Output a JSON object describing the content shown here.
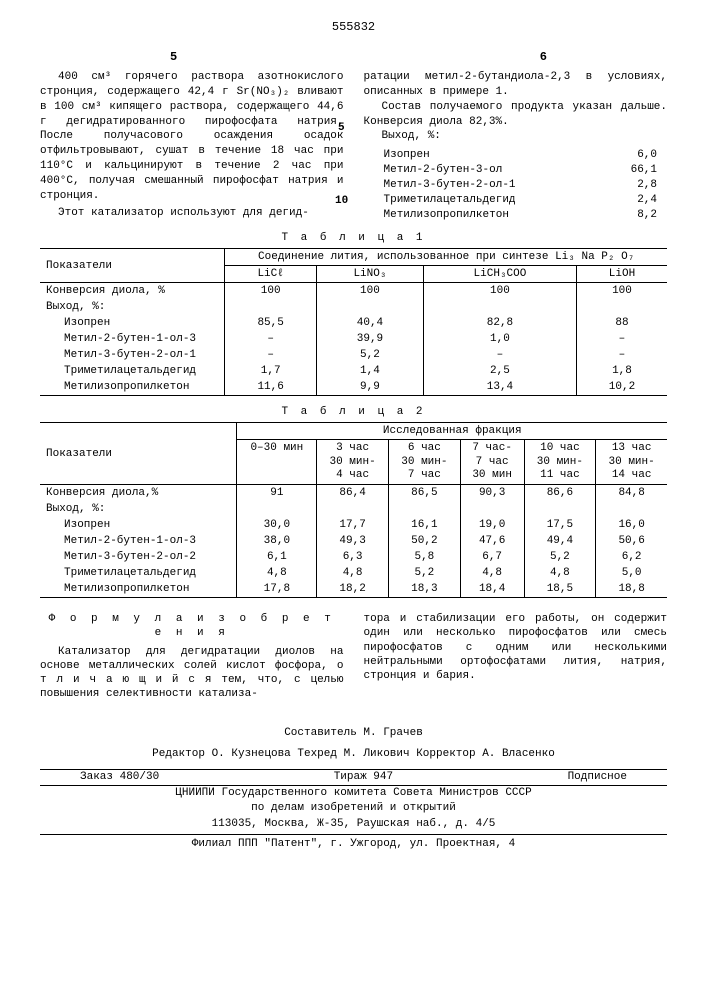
{
  "document_number": "555832",
  "page_left_num": "5",
  "page_right_num": "6",
  "margin_nums": {
    "n5": "5",
    "n10": "10"
  },
  "left_col_text": "400 см³ горячего раствора азотнокислого стронция, содержащего 42,4 г Sr(NO₃)₂ вливают в 100 см³ кипящего раствора, содержащего 44,6 г дегидратированного пирофосфата натрия. После получасового осаждения осадок отфильтровывают, сушат в течение 18 час при 110°С и кальцинируют в течение 2 час при 400°С, получая смешанный пирофосфат натрия и стронция.",
  "left_col_text2": "Этот катализатор используют для дегид-",
  "right_col_text1": "ратации метил-2-бутандиола-2,3 в условиях, описанных в примере 1.",
  "right_col_text2": "Состав получаемого продукта указан дальше. Конверсия диола 82,3%.",
  "right_col_text3": "Выход, %:",
  "composition": [
    {
      "label": "Изопрен",
      "value": "6,0"
    },
    {
      "label": "Метил-2-бутен-3-ол",
      "value": "66,1"
    },
    {
      "label": "Метил-3-бутен-2-ол-1",
      "value": "2,8"
    },
    {
      "label": "Триметилацетальдегид",
      "value": "2,4"
    },
    {
      "label": "Метилизопропилкетон",
      "value": "8,2"
    }
  ],
  "table1": {
    "caption": "Т а б л и ц а  1",
    "header_main": "Соединение лития, использованное при синтезе Li₃ Na P₂ O₇",
    "row_label_header": "Показатели",
    "col_headers": [
      "LiCℓ",
      "LiNO₃",
      "LiCH₃COO",
      "LiOH"
    ],
    "rows": [
      {
        "label": "Конверсия диола, %",
        "values": [
          "100",
          "100",
          "100",
          "100"
        ]
      },
      {
        "label": "Выход, %:",
        "values": [
          "",
          "",
          "",
          ""
        ]
      },
      {
        "label": "Изопрен",
        "values": [
          "85,5",
          "40,4",
          "82,8",
          "88"
        ],
        "indent": true
      },
      {
        "label": "Метил-2-бутен-1-ол-3",
        "values": [
          "–",
          "39,9",
          "1,0",
          "–"
        ],
        "indent": true
      },
      {
        "label": "Метил-3-бутен-2-ол-1",
        "values": [
          "–",
          "5,2",
          "–",
          "–"
        ],
        "indent": true
      },
      {
        "label": "Триметилацетальдегид",
        "values": [
          "1,7",
          "1,4",
          "2,5",
          "1,8"
        ],
        "indent": true
      },
      {
        "label": "Метилизопропилкетон",
        "values": [
          "11,6",
          "9,9",
          "13,4",
          "10,2"
        ],
        "indent": true
      }
    ]
  },
  "table2": {
    "caption": "Т а б л и ц а  2",
    "row_label_header": "Показатели",
    "header_main": "Исследованная фракция",
    "col_headers_top": [
      "0–30 мин",
      "3 час 30 мин- 4 час",
      "6 час 30 мин- 7 час",
      "7 час- 7 час 30 мин",
      "10 час 30 мин- 11 час",
      "13 час 30 мин- 14 час"
    ],
    "rows": [
      {
        "label": "Конверсия диола,%",
        "values": [
          "91",
          "86,4",
          "86,5",
          "90,3",
          "86,6",
          "84,8"
        ]
      },
      {
        "label": "Выход, %:",
        "values": [
          "",
          "",
          "",
          "",
          "",
          ""
        ]
      },
      {
        "label": "Изопрен",
        "values": [
          "30,0",
          "17,7",
          "16,1",
          "19,0",
          "17,5",
          "16,0"
        ],
        "indent": true
      },
      {
        "label": "Метил-2-бутен-1-ол-3",
        "values": [
          "38,0",
          "49,3",
          "50,2",
          "47,6",
          "49,4",
          "50,6"
        ],
        "indent": true
      },
      {
        "label": "Метил-3-бутен-2-ол-2",
        "values": [
          "6,1",
          "6,3",
          "5,8",
          "6,7",
          "5,2",
          "6,2"
        ],
        "indent": true
      },
      {
        "label": "Триметилацетальдегид",
        "values": [
          "4,8",
          "4,8",
          "5,2",
          "4,8",
          "4,8",
          "5,0"
        ],
        "indent": true
      },
      {
        "label": "Метилизопропилкетон",
        "values": [
          "17,8",
          "18,2",
          "18,3",
          "18,4",
          "18,5",
          "18,8"
        ],
        "indent": true
      }
    ]
  },
  "formula": {
    "title": "Ф о р м у л а   и з о б р е т е н и я",
    "left": "Катализатор для дегидратации диолов на основе металлических солей кислот фосфора, о т л и ч а ю щ и й с я  тем, что, с целью повышения селективности катализа-",
    "right": "тора и стабилизации его работы, он содержит один или несколько пирофосфатов или смесь пирофосфатов с одним или несколькими нейтральными ортофосфатами лития, натрия, стронция и бария."
  },
  "footer": {
    "composer": "Составитель М. Грачев",
    "credits_line": "Редактор О. Кузнецова Техред М. Ликович Корректор А. Власенко",
    "order": "Заказ 480/30",
    "tirage": "Тираж 947",
    "subscription": "Подписное",
    "org1": "ЦНИИПИ Государственного комитета Совета Министров СССР",
    "org2": "по делам изобретений и открытий",
    "address": "113035, Москва, Ж-35, Раушская наб., д. 4/5",
    "branch": "Филиал ППП \"Патент\", г. Ужгород, ул. Проектная, 4"
  }
}
